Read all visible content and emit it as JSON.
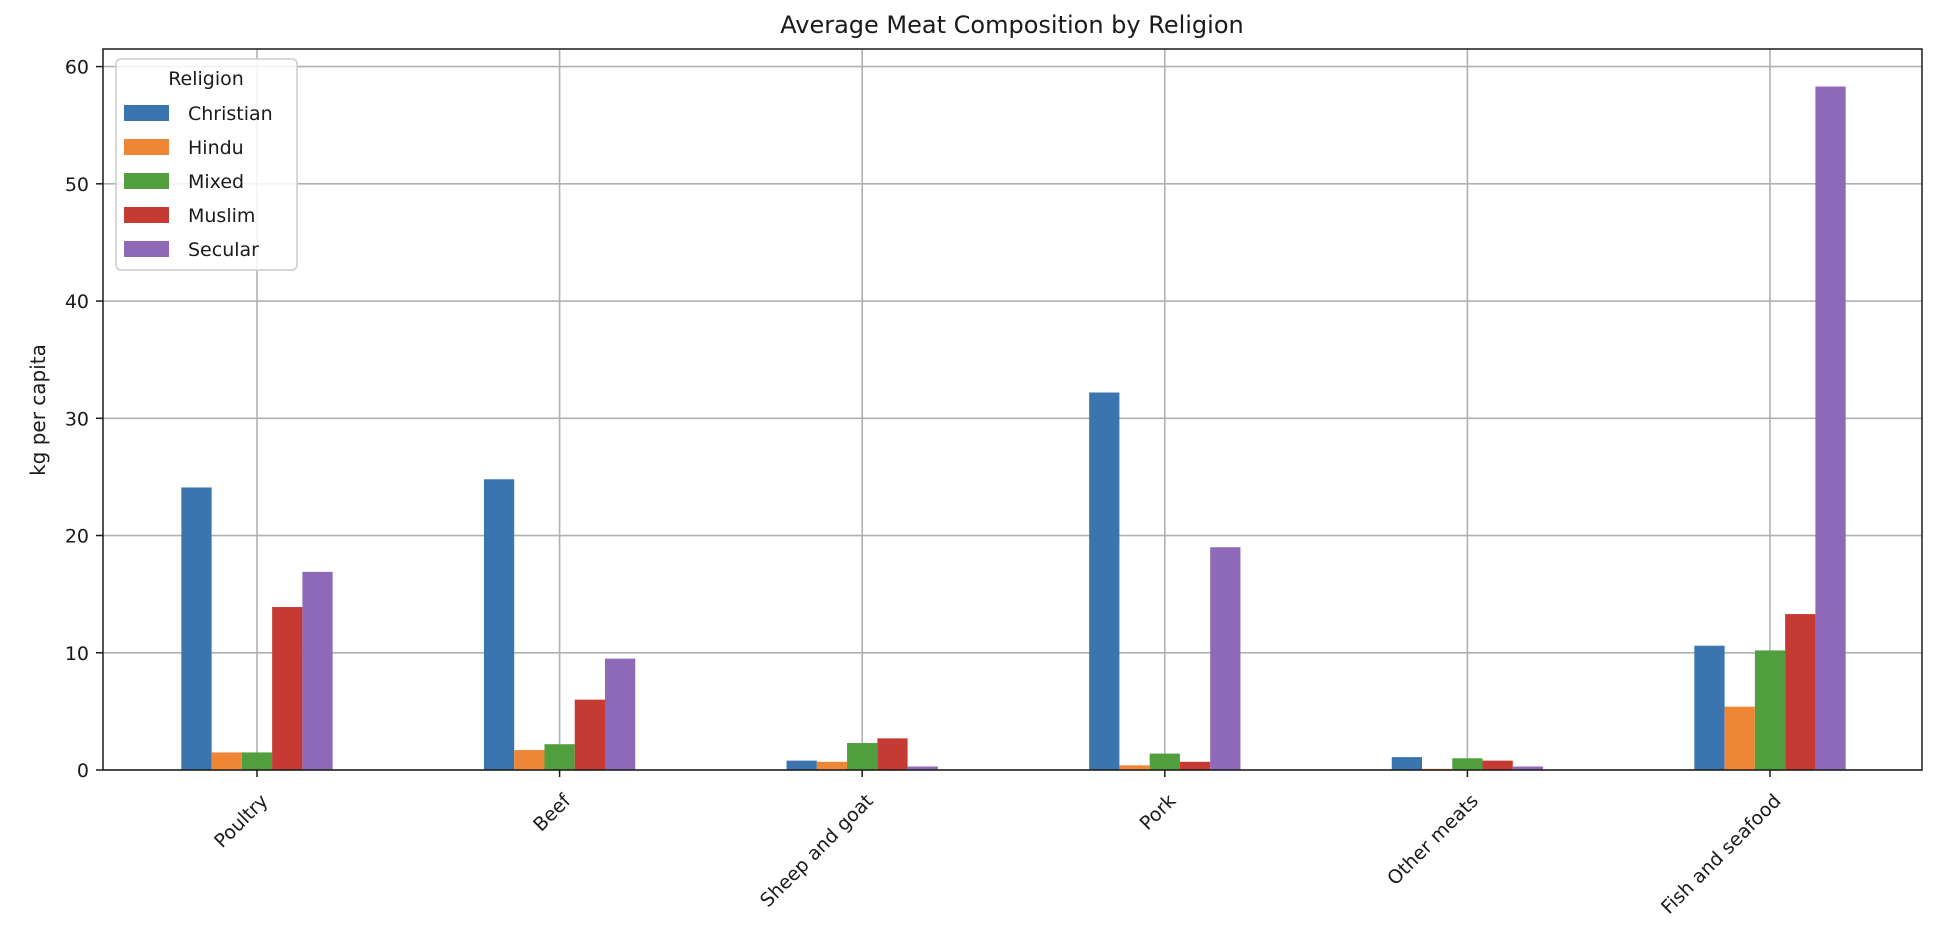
{
  "chart_data": {
    "type": "bar",
    "title": "Average Meat Composition by Religion",
    "xlabel": "",
    "ylabel": "kg per capita",
    "ylim": [
      0,
      61.5
    ],
    "yticks": [
      0,
      10,
      20,
      30,
      40,
      50,
      60
    ],
    "grid": true,
    "legend": {
      "title": "Religion",
      "placement": "top-left"
    },
    "categories": [
      "Poultry",
      "Beef",
      "Sheep and goat",
      "Pork",
      "Other meats",
      "Fish and seafood"
    ],
    "series": [
      {
        "name": "Christian",
        "color": "#3a75b0",
        "values": [
          24.1,
          24.8,
          0.8,
          32.2,
          1.1,
          10.6
        ]
      },
      {
        "name": "Hindu",
        "color": "#ef8636",
        "values": [
          1.5,
          1.7,
          0.7,
          0.4,
          0.1,
          5.4
        ]
      },
      {
        "name": "Mixed",
        "color": "#519e3e",
        "values": [
          1.5,
          2.2,
          2.3,
          1.4,
          1.0,
          10.2
        ]
      },
      {
        "name": "Muslim",
        "color": "#c53a32",
        "values": [
          13.9,
          6.0,
          2.7,
          0.7,
          0.8,
          13.3
        ]
      },
      {
        "name": "Secular",
        "color": "#8d69b8",
        "values": [
          16.9,
          9.5,
          0.3,
          19.0,
          0.3,
          58.3
        ]
      }
    ]
  }
}
